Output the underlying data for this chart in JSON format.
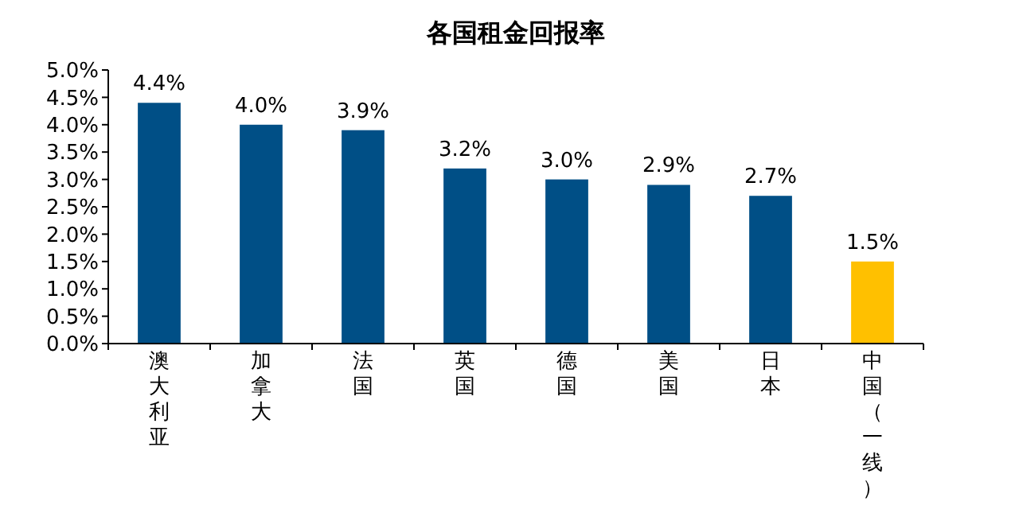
{
  "chart_data": {
    "type": "bar",
    "title": "各国租金回报率",
    "categories": [
      "澳大利亚",
      "加拿大",
      "法国",
      "英国",
      "德国",
      "美国",
      "日本",
      "中国（一线）"
    ],
    "values": [
      4.4,
      4.0,
      3.9,
      3.2,
      3.0,
      2.9,
      2.7,
      1.5
    ],
    "colors": [
      "#004f86",
      "#004f86",
      "#004f86",
      "#004f86",
      "#004f86",
      "#004f86",
      "#004f86",
      "#ffc000"
    ],
    "value_labels": [
      "4.4%",
      "4.0%",
      "3.9%",
      "3.2%",
      "3.0%",
      "2.9%",
      "2.7%",
      "1.5%"
    ],
    "ylim": [
      0,
      5
    ],
    "yticks": [
      {
        "value": 0,
        "label": "0.0%"
      },
      {
        "value": 0.5,
        "label": "0.5%"
      },
      {
        "value": 1,
        "label": "1.0%"
      },
      {
        "value": 1.5,
        "label": "1.5%"
      },
      {
        "value": 2,
        "label": "2.0%"
      },
      {
        "value": 2.5,
        "label": "2.5%"
      },
      {
        "value": 3,
        "label": "3.0%"
      },
      {
        "value": 3.5,
        "label": "3.5%"
      },
      {
        "value": 4,
        "label": "4.0%"
      },
      {
        "value": 4.5,
        "label": "4.5%"
      },
      {
        "value": 5,
        "label": "5.0%"
      }
    ],
    "grid": false
  }
}
